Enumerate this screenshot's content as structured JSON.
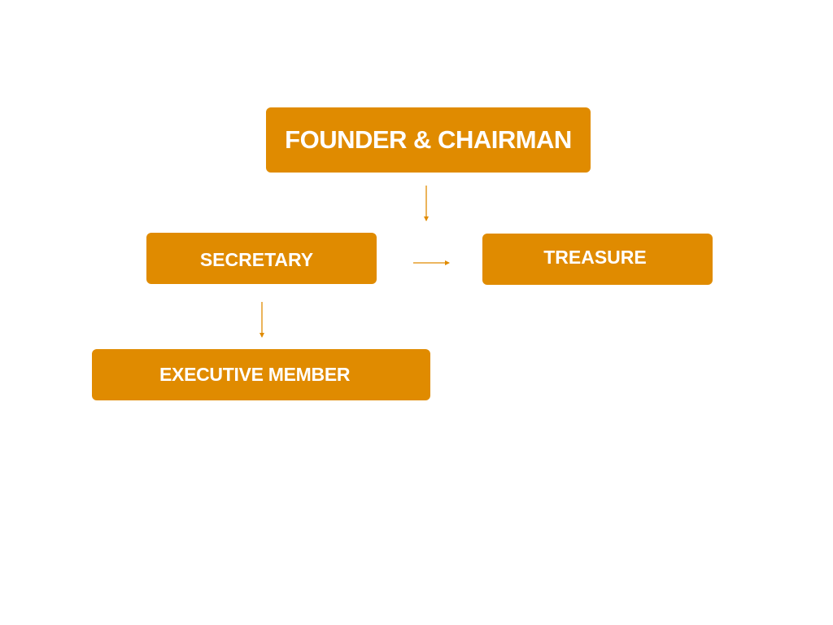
{
  "diagram": {
    "accent_color": "#e08b00",
    "text_color": "#ffffff",
    "nodes": {
      "founder": "FOUNDER & CHAIRMAN",
      "secretary": "SECRETARY",
      "treasure": "TREASURE",
      "executive": "EXECUTIVE MEMBER"
    },
    "edges": [
      {
        "from": "founder",
        "to": "secretary-treasure-row",
        "direction": "down"
      },
      {
        "from": "secretary",
        "to": "treasure",
        "direction": "right"
      },
      {
        "from": "secretary",
        "to": "executive",
        "direction": "down"
      }
    ]
  }
}
